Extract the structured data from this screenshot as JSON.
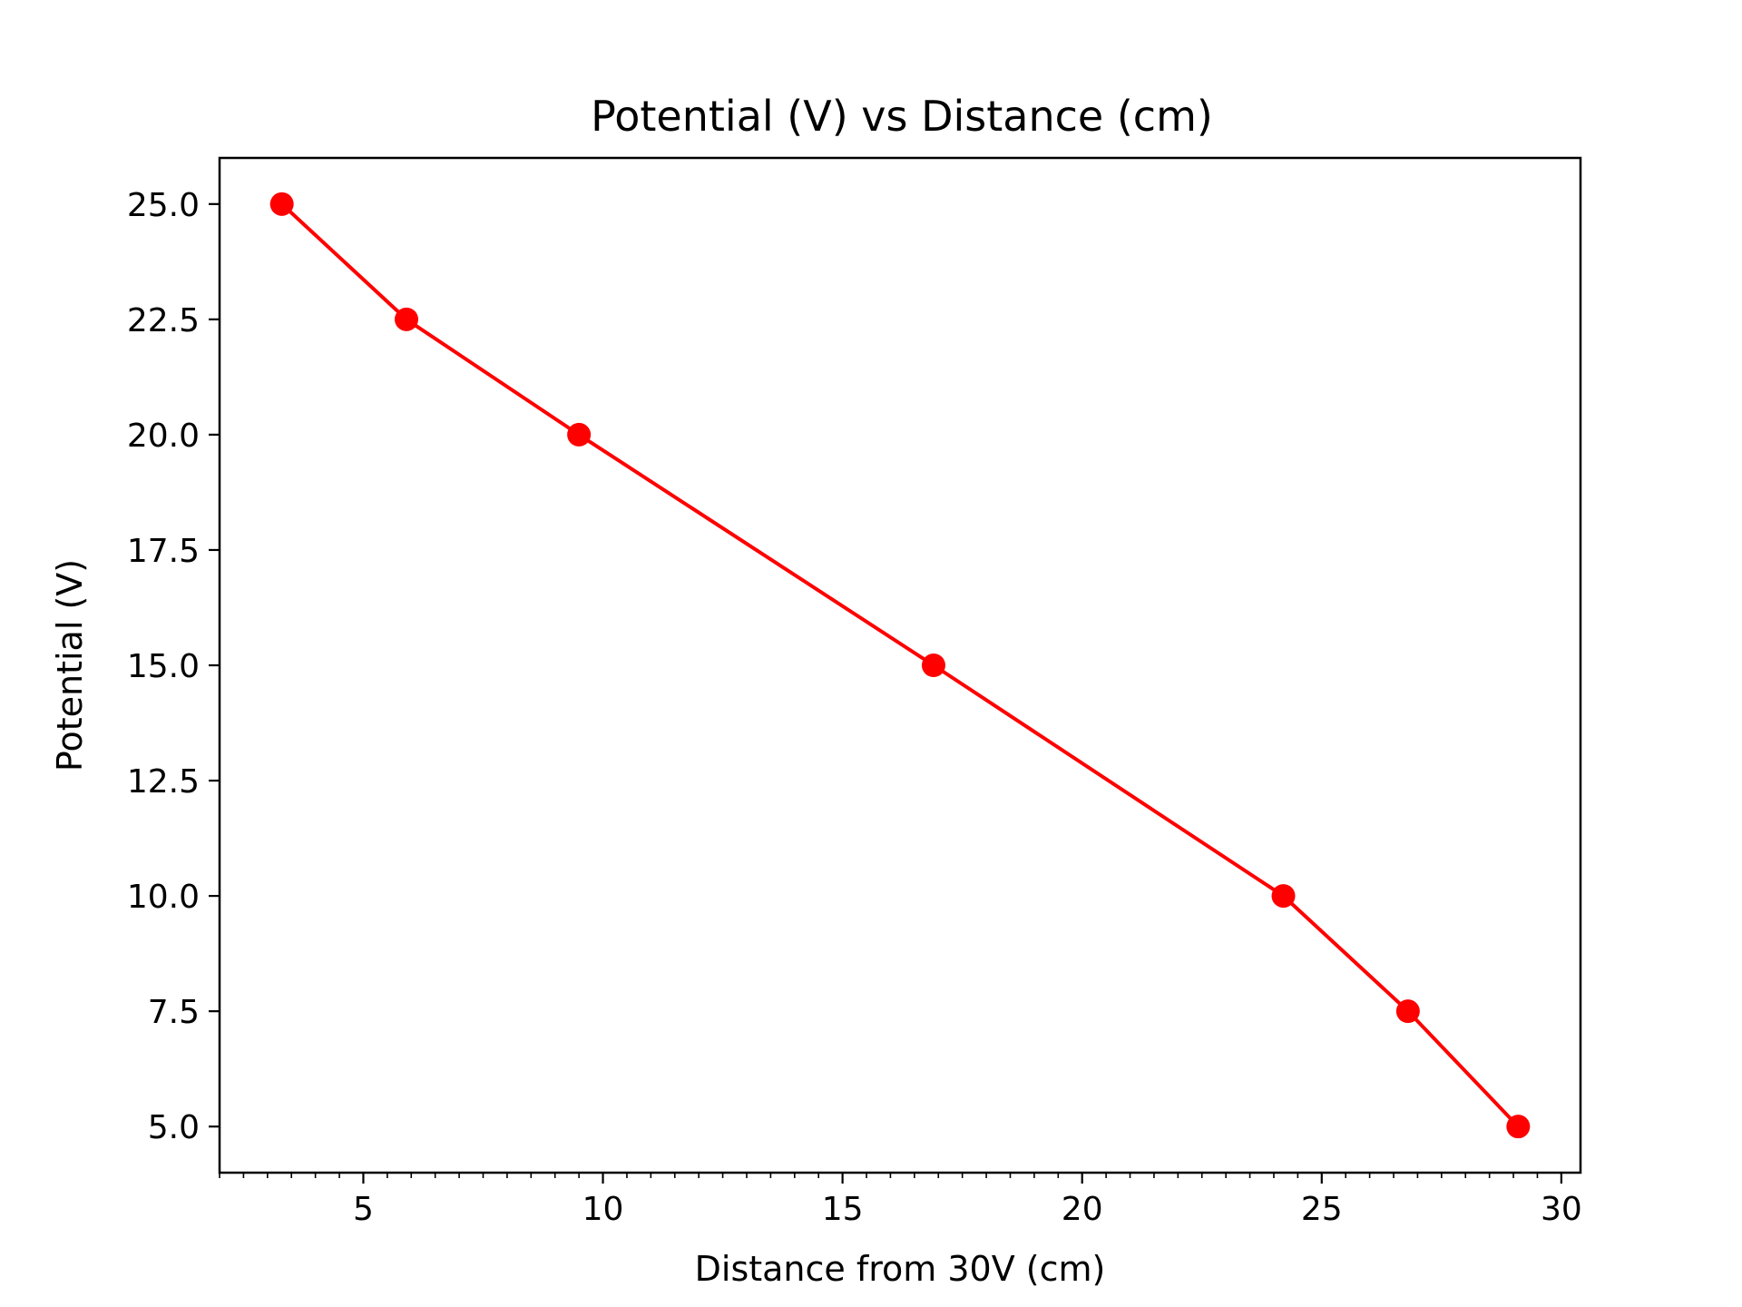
{
  "chart_data": {
    "type": "line",
    "title": "Potential (V) vs Distance (cm)",
    "xlabel": "Distance from 30V (cm)",
    "ylabel": "Potential (V)",
    "xlim": [
      2.0,
      30.4
    ],
    "ylim": [
      4.0,
      26.0
    ],
    "xticks": [
      5,
      10,
      15,
      20,
      25,
      30
    ],
    "xtick_labels": [
      "5",
      "10",
      "15",
      "20",
      "25",
      "30"
    ],
    "x_minor_ticks": true,
    "yticks": [
      5.0,
      7.5,
      10.0,
      12.5,
      15.0,
      17.5,
      20.0,
      22.5,
      25.0
    ],
    "ytick_labels": [
      "5.0",
      "7.5",
      "10.0",
      "12.5",
      "15.0",
      "17.5",
      "20.0",
      "22.5",
      "25.0"
    ],
    "grid": false,
    "series": [
      {
        "color": "#ff0000",
        "marker": "circle",
        "x": [
          3.3,
          5.9,
          9.5,
          16.9,
          24.2,
          26.8,
          29.1
        ],
        "y": [
          25.0,
          22.5,
          20.0,
          15.0,
          10.0,
          7.5,
          5.0
        ]
      }
    ]
  }
}
